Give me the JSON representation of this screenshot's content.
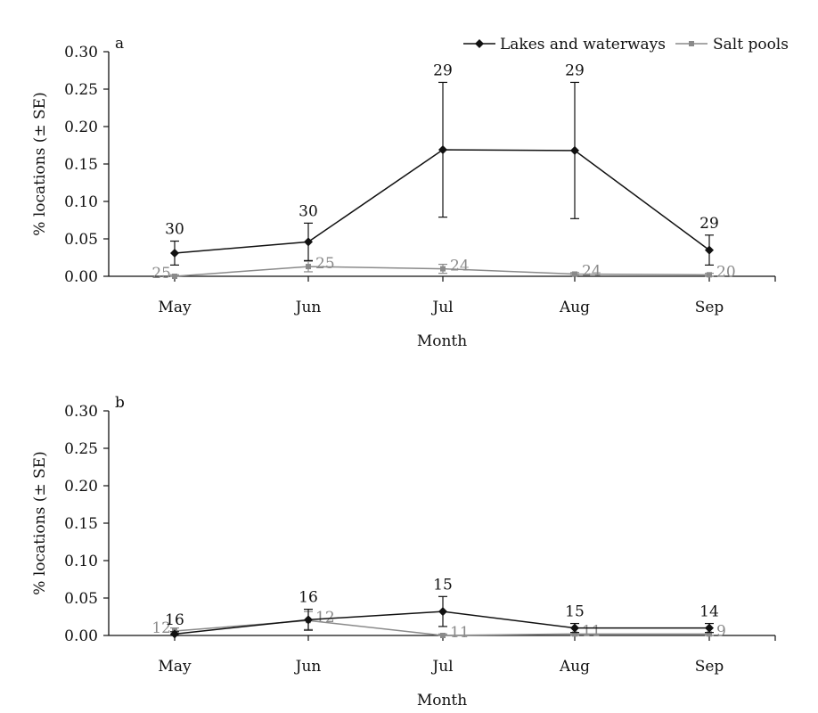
{
  "colors": {
    "lakes": "#111111",
    "salt": "#8a8a8a",
    "axis": "#111111"
  },
  "legend": {
    "placement": "top-right",
    "entries": [
      {
        "series": "lakes",
        "label": "Lakes and waterways"
      },
      {
        "series": "salt",
        "label": "Salt pools"
      }
    ]
  },
  "chart_data": [
    {
      "type": "line",
      "panel_label": "a",
      "xlabel": "Month",
      "ylabel": "% locations (± SE)",
      "categories": [
        "May",
        "Jun",
        "Jul",
        "Aug",
        "Sep"
      ],
      "ylim": [
        0,
        0.3
      ],
      "yticks": [
        "0.00",
        "0.05",
        "0.10",
        "0.15",
        "0.20",
        "0.25",
        "0.30"
      ],
      "grid": false,
      "series": [
        {
          "key": "lakes",
          "name": "Lakes and waterways",
          "values": [
            0.031,
            0.046,
            0.169,
            0.168,
            0.035
          ],
          "se": [
            0.016,
            0.025,
            0.09,
            0.091,
            0.02
          ],
          "n": [
            "30",
            "30",
            "29",
            "29",
            "29"
          ]
        },
        {
          "key": "salt",
          "name": "Salt pools",
          "values": [
            0.0,
            0.013,
            0.01,
            0.003,
            0.002
          ],
          "se": [
            0.002,
            0.007,
            0.006,
            0.002,
            0.002
          ],
          "n": [
            "25",
            "25",
            "24",
            "24",
            "20"
          ]
        }
      ]
    },
    {
      "type": "line",
      "panel_label": "b",
      "xlabel": "Month",
      "ylabel": "% locations (± SE)",
      "categories": [
        "May",
        "Jun",
        "Jul",
        "Aug",
        "Sep"
      ],
      "ylim": [
        0,
        0.3
      ],
      "yticks": [
        "0.00",
        "0.05",
        "0.10",
        "0.15",
        "0.20",
        "0.25",
        "0.30"
      ],
      "grid": false,
      "series": [
        {
          "key": "lakes",
          "name": "Lakes and waterways",
          "values": [
            0.002,
            0.021,
            0.032,
            0.01,
            0.01
          ],
          "se": [
            0.003,
            0.014,
            0.02,
            0.006,
            0.006
          ],
          "n": [
            "16",
            "16",
            "15",
            "15",
            "14"
          ]
        },
        {
          "key": "salt",
          "name": "Salt pools",
          "values": [
            0.006,
            0.02,
            0.0,
            0.002,
            0.002
          ],
          "se": [
            0.004,
            0.012,
            0.002,
            0.002,
            0.002
          ],
          "n": [
            "12",
            "12",
            "11",
            "11",
            "9"
          ]
        }
      ]
    }
  ]
}
